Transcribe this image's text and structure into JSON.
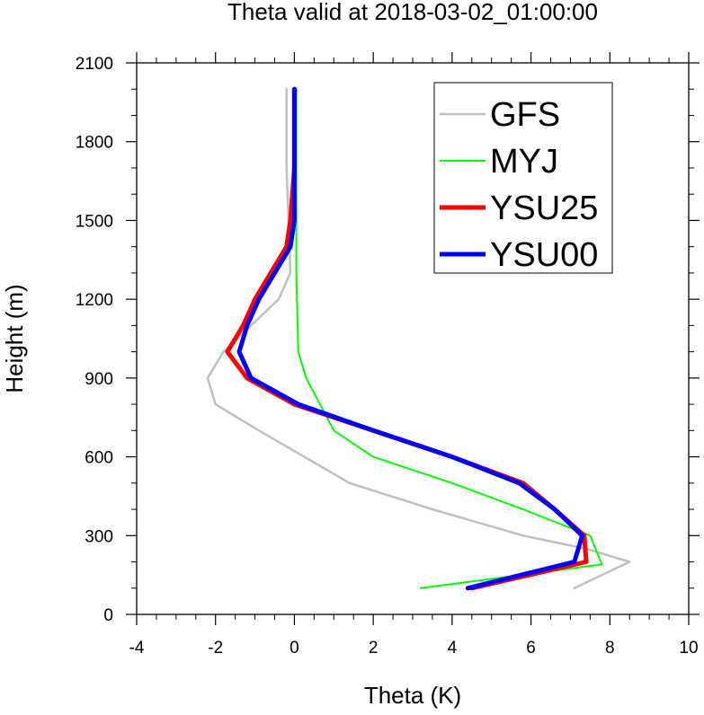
{
  "chart_data": {
    "type": "line",
    "title": "Theta valid at 2018-03-02_01:00:00",
    "xlabel": "Theta (K)",
    "ylabel": "Height (m)",
    "xlim": [
      -4,
      10
    ],
    "ylim": [
      0,
      2100
    ],
    "xticks": [
      "-4",
      "-2",
      "0",
      "2",
      "4",
      "6",
      "8",
      "10"
    ],
    "yticks": [
      "0",
      "300",
      "600",
      "900",
      "1200",
      "1500",
      "1800",
      "2100"
    ],
    "grid": false,
    "legend_position": "top-right",
    "series": [
      {
        "name": "GFS",
        "color": "#c0c0c0",
        "x": [
          7.1,
          8.5,
          7.4,
          5.8,
          3.5,
          1.4,
          -0.9,
          -2.0,
          -2.2,
          -1.8,
          -0.4,
          -0.1,
          -0.2,
          -0.2
        ],
        "y": [
          100,
          200,
          250,
          300,
          400,
          500,
          700,
          800,
          900,
          1000,
          1200,
          1300,
          1700,
          2000
        ]
      },
      {
        "name": "MYJ",
        "color": "#00ff00",
        "x": [
          3.2,
          7.8,
          7.5,
          5.8,
          4.0,
          2.0,
          1.0,
          0.3,
          0.1,
          0.05,
          0.05,
          0.05
        ],
        "y": [
          100,
          190,
          300,
          400,
          500,
          600,
          700,
          900,
          1000,
          1300,
          1700,
          2000
        ]
      },
      {
        "name": "YSU25",
        "color": "#ff0000",
        "x": [
          4.5,
          7.4,
          7.35,
          6.6,
          5.8,
          4.0,
          2.0,
          0.0,
          -1.2,
          -1.7,
          -1.3,
          -1.0,
          -0.6,
          -0.2,
          -0.1,
          0.0,
          0.0
        ],
        "y": [
          100,
          200,
          300,
          400,
          500,
          600,
          700,
          800,
          900,
          1000,
          1100,
          1200,
          1300,
          1400,
          1500,
          1700,
          2000
        ]
      },
      {
        "name": "YSU00",
        "color": "#0000ff",
        "x": [
          4.4,
          7.1,
          7.3,
          6.6,
          5.7,
          4.0,
          2.0,
          0.1,
          -1.1,
          -1.4,
          -1.2,
          -0.9,
          -0.5,
          -0.1,
          0.0,
          0.0,
          0.0
        ],
        "y": [
          100,
          200,
          300,
          400,
          500,
          600,
          700,
          800,
          900,
          1000,
          1100,
          1200,
          1300,
          1400,
          1500,
          1700,
          2000
        ]
      }
    ]
  }
}
